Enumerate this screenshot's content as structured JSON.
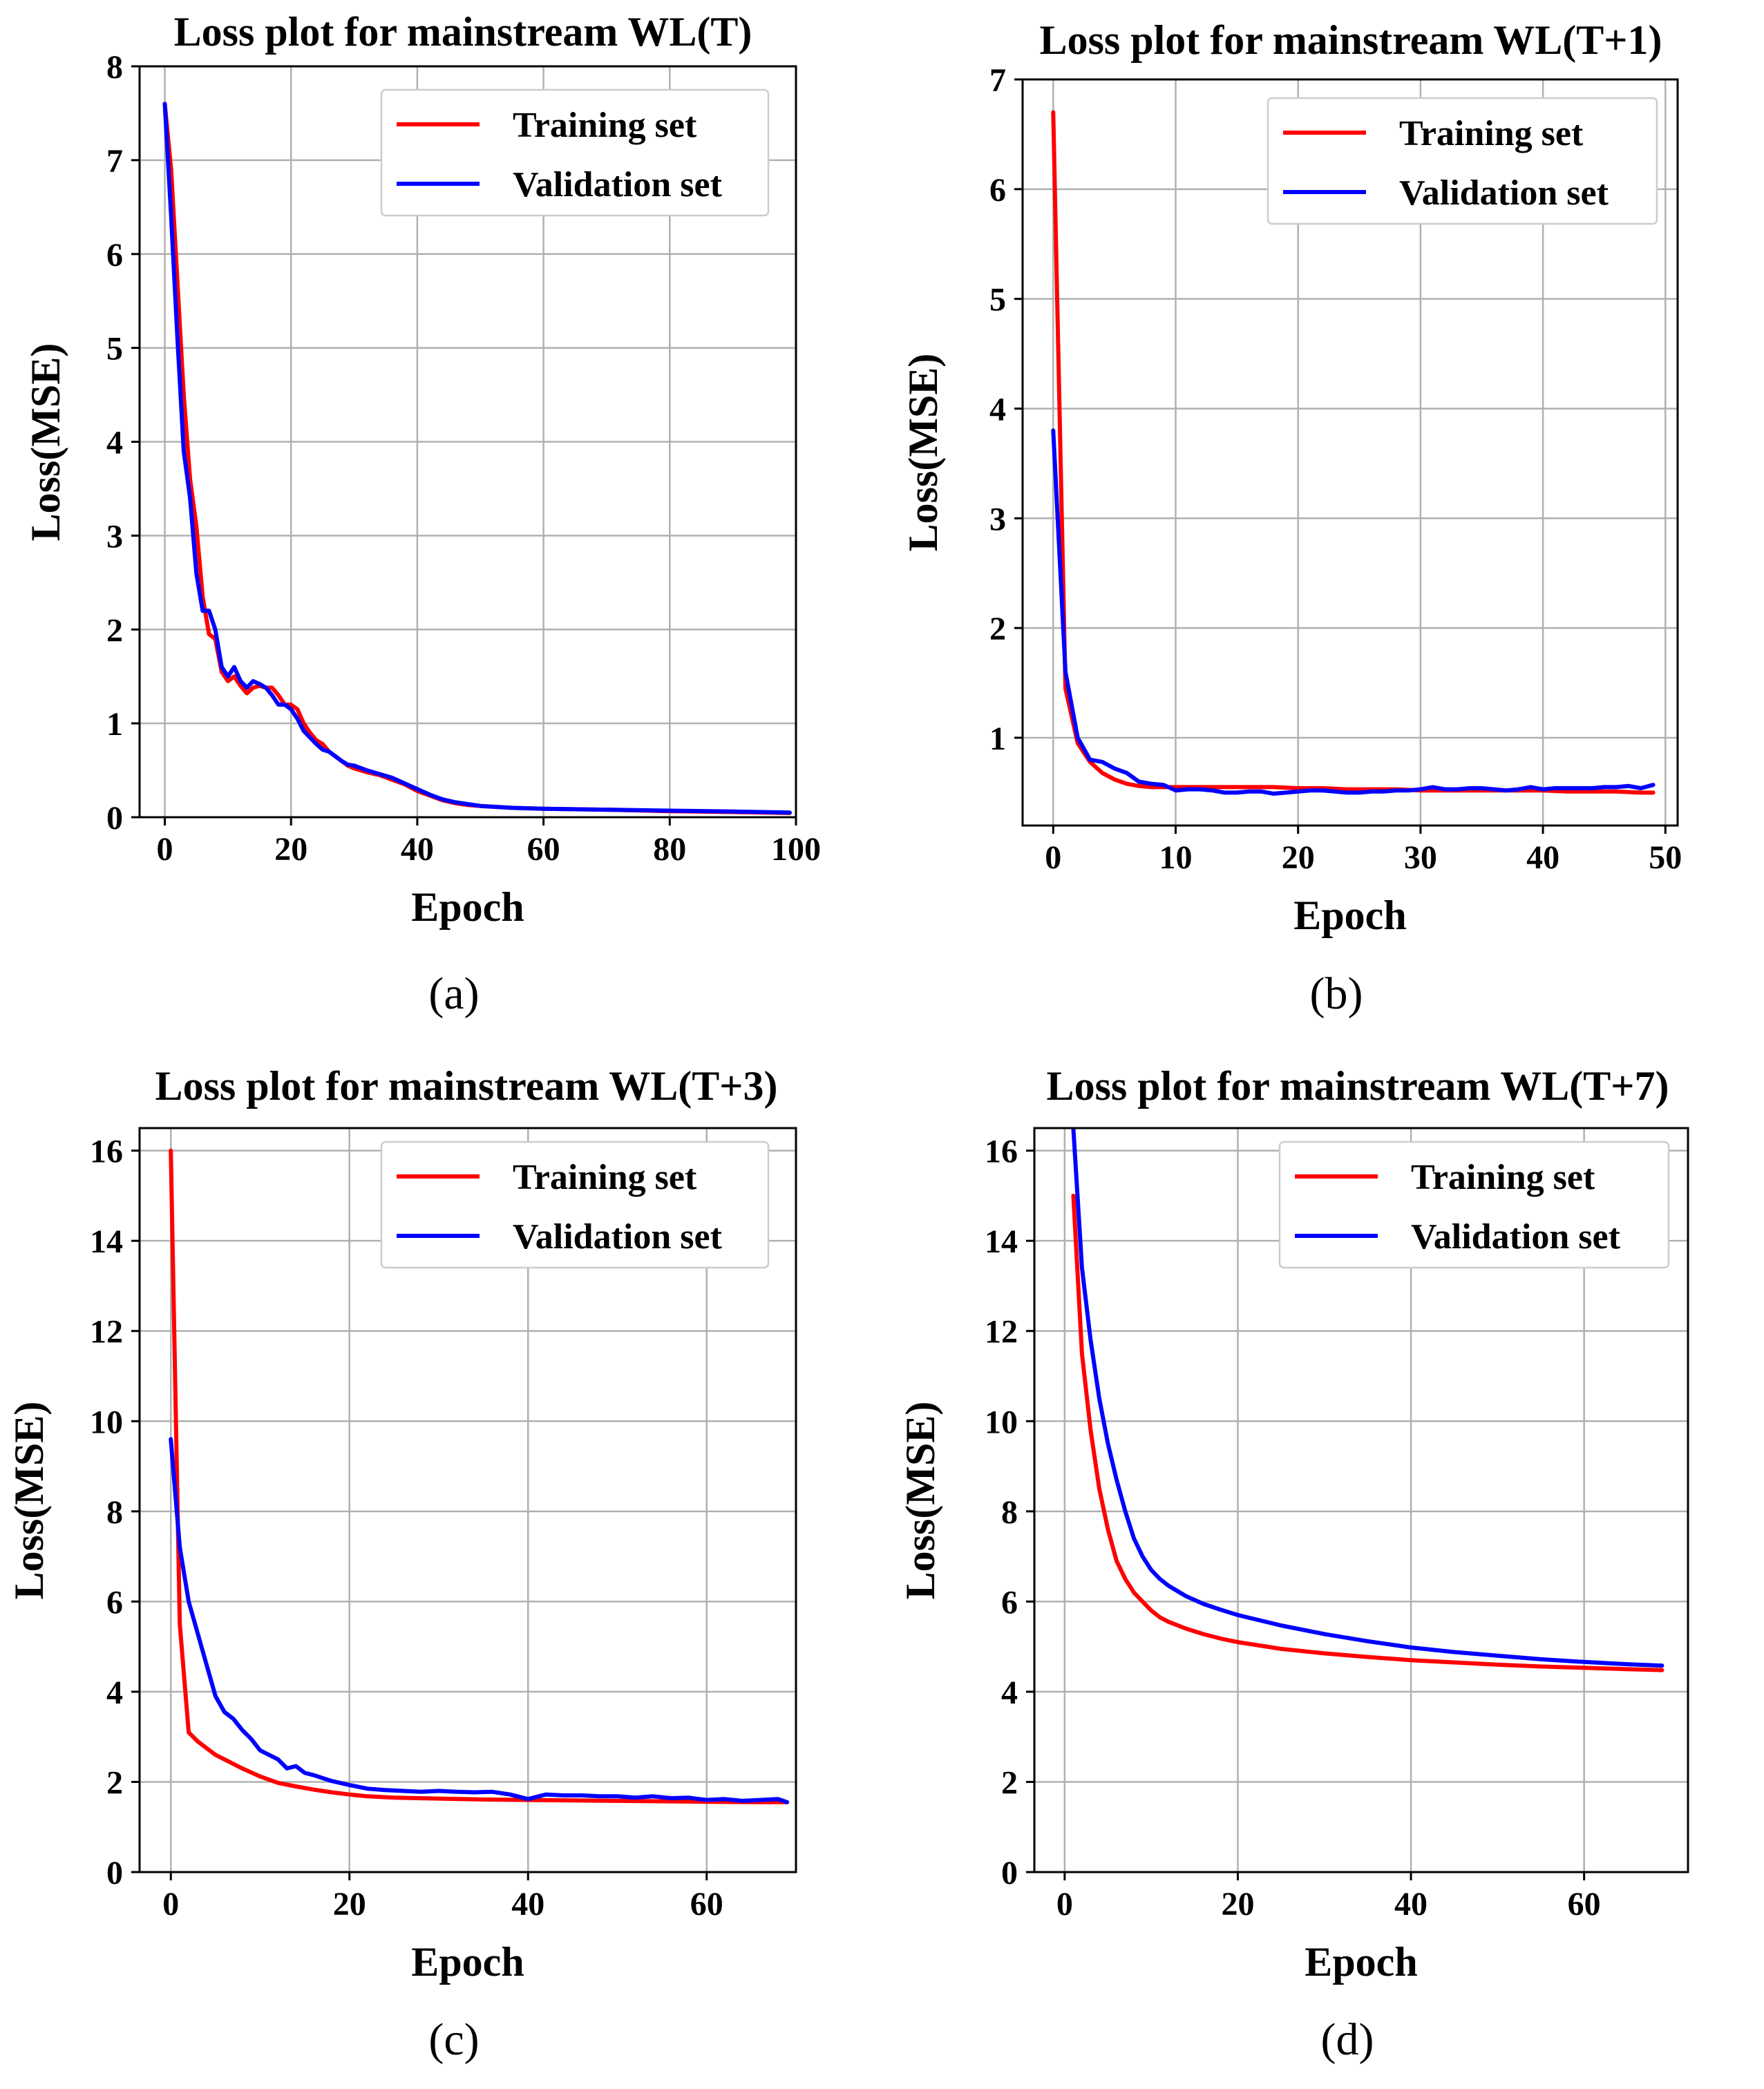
{
  "chart_data": [
    {
      "type": "line",
      "panel_label": "(a)",
      "title": "Loss plot for mainstream WL(T)",
      "xlabel": "Epoch",
      "ylabel": "Loss(MSE)",
      "xlim": [
        -4,
        100
      ],
      "ylim": [
        0,
        8
      ],
      "xticks": [
        0,
        20,
        40,
        60,
        80,
        100
      ],
      "yticks": [
        0,
        1,
        2,
        3,
        4,
        5,
        6,
        7,
        8
      ],
      "grid": true,
      "legend_position": "top-right",
      "series": [
        {
          "name": "Training set",
          "color": "#ff0000",
          "x": [
            0,
            1,
            2,
            3,
            4,
            5,
            6,
            7,
            8,
            9,
            10,
            11,
            12,
            13,
            14,
            15,
            16,
            17,
            18,
            19,
            20,
            21,
            22,
            23,
            24,
            25,
            26,
            27,
            28,
            29,
            30,
            32,
            34,
            36,
            38,
            40,
            42,
            44,
            46,
            48,
            50,
            55,
            60,
            70,
            80,
            90,
            99
          ],
          "y": [
            7.6,
            6.9,
            5.7,
            4.5,
            3.6,
            3.1,
            2.35,
            1.95,
            1.9,
            1.55,
            1.45,
            1.5,
            1.4,
            1.32,
            1.38,
            1.4,
            1.38,
            1.38,
            1.3,
            1.2,
            1.2,
            1.15,
            1.0,
            0.9,
            0.82,
            0.78,
            0.7,
            0.65,
            0.6,
            0.55,
            0.52,
            0.48,
            0.45,
            0.4,
            0.35,
            0.28,
            0.23,
            0.18,
            0.15,
            0.13,
            0.12,
            0.1,
            0.09,
            0.08,
            0.065,
            0.055,
            0.045
          ]
        },
        {
          "name": "Validation set",
          "color": "#0000ff",
          "x": [
            0,
            1,
            2,
            3,
            4,
            5,
            6,
            7,
            8,
            9,
            10,
            11,
            12,
            13,
            14,
            15,
            16,
            17,
            18,
            19,
            20,
            21,
            22,
            23,
            24,
            25,
            26,
            27,
            28,
            29,
            30,
            32,
            34,
            36,
            38,
            40,
            42,
            44,
            46,
            48,
            50,
            55,
            60,
            70,
            80,
            90,
            99
          ],
          "y": [
            7.6,
            6.4,
            5.1,
            3.9,
            3.4,
            2.6,
            2.2,
            2.2,
            2.0,
            1.6,
            1.5,
            1.6,
            1.45,
            1.38,
            1.45,
            1.42,
            1.38,
            1.3,
            1.2,
            1.2,
            1.15,
            1.05,
            0.92,
            0.85,
            0.78,
            0.72,
            0.7,
            0.65,
            0.6,
            0.56,
            0.55,
            0.5,
            0.46,
            0.42,
            0.36,
            0.3,
            0.24,
            0.19,
            0.16,
            0.14,
            0.12,
            0.1,
            0.09,
            0.08,
            0.07,
            0.06,
            0.05
          ]
        }
      ]
    },
    {
      "type": "line",
      "panel_label": "(b)",
      "title": "Loss plot for mainstream WL(T+1)",
      "xlabel": "Epoch",
      "ylabel": "Loss(MSE)",
      "xlim": [
        -2.5,
        51
      ],
      "ylim": [
        0.2,
        7
      ],
      "xticks": [
        0,
        10,
        20,
        30,
        40,
        50
      ],
      "yticks": [
        1,
        2,
        3,
        4,
        5,
        6,
        7
      ],
      "grid": true,
      "legend_position": "top-right",
      "series": [
        {
          "name": "Training set",
          "color": "#ff0000",
          "x": [
            0,
            1,
            2,
            3,
            4,
            5,
            6,
            7,
            8,
            9,
            10,
            12,
            14,
            16,
            18,
            20,
            22,
            24,
            26,
            28,
            30,
            32,
            34,
            36,
            38,
            40,
            42,
            44,
            46,
            48,
            49
          ],
          "y": [
            6.7,
            1.45,
            0.95,
            0.78,
            0.68,
            0.62,
            0.58,
            0.56,
            0.55,
            0.55,
            0.55,
            0.55,
            0.55,
            0.55,
            0.55,
            0.54,
            0.54,
            0.53,
            0.53,
            0.53,
            0.52,
            0.52,
            0.52,
            0.52,
            0.52,
            0.52,
            0.51,
            0.51,
            0.51,
            0.5,
            0.5
          ]
        },
        {
          "name": "Validation set",
          "color": "#0000ff",
          "x": [
            0,
            1,
            2,
            3,
            4,
            5,
            6,
            7,
            8,
            9,
            10,
            11,
            12,
            13,
            14,
            15,
            16,
            17,
            18,
            19,
            20,
            21,
            22,
            23,
            24,
            25,
            26,
            27,
            28,
            29,
            30,
            31,
            32,
            33,
            34,
            35,
            36,
            37,
            38,
            39,
            40,
            41,
            42,
            43,
            44,
            45,
            46,
            47,
            48,
            49
          ],
          "y": [
            3.8,
            1.6,
            1.0,
            0.8,
            0.78,
            0.72,
            0.68,
            0.6,
            0.58,
            0.57,
            0.52,
            0.53,
            0.53,
            0.52,
            0.5,
            0.5,
            0.51,
            0.51,
            0.49,
            0.5,
            0.51,
            0.52,
            0.52,
            0.51,
            0.5,
            0.5,
            0.51,
            0.51,
            0.52,
            0.52,
            0.53,
            0.55,
            0.53,
            0.53,
            0.54,
            0.54,
            0.53,
            0.52,
            0.53,
            0.55,
            0.53,
            0.54,
            0.54,
            0.54,
            0.54,
            0.55,
            0.55,
            0.56,
            0.54,
            0.57
          ]
        }
      ]
    },
    {
      "type": "line",
      "panel_label": "(c)",
      "title": "Loss plot for mainstream WL(T+3)",
      "xlabel": "Epoch",
      "ylabel": "Loss(MSE)",
      "xlim": [
        -3.5,
        70
      ],
      "ylim": [
        0,
        16.5
      ],
      "xticks": [
        0,
        20,
        40,
        60
      ],
      "yticks": [
        0,
        2,
        4,
        6,
        8,
        10,
        12,
        14,
        16
      ],
      "grid": true,
      "legend_position": "top-right",
      "series": [
        {
          "name": "Training set",
          "color": "#ff0000",
          "x": [
            0,
            1,
            2,
            3,
            4,
            5,
            6,
            8,
            10,
            12,
            14,
            16,
            18,
            20,
            22,
            25,
            30,
            35,
            40,
            45,
            50,
            55,
            60,
            65,
            69
          ],
          "y": [
            16.0,
            5.5,
            3.1,
            2.9,
            2.75,
            2.6,
            2.5,
            2.3,
            2.12,
            1.98,
            1.9,
            1.83,
            1.77,
            1.72,
            1.68,
            1.65,
            1.63,
            1.61,
            1.6,
            1.59,
            1.58,
            1.57,
            1.56,
            1.55,
            1.55
          ]
        },
        {
          "name": "Validation set",
          "color": "#0000ff",
          "x": [
            0,
            1,
            2,
            3,
            4,
            5,
            6,
            7,
            8,
            9,
            10,
            11,
            12,
            13,
            14,
            15,
            16,
            18,
            20,
            22,
            24,
            26,
            28,
            30,
            32,
            34,
            36,
            38,
            40,
            42,
            44,
            46,
            48,
            50,
            52,
            54,
            56,
            58,
            60,
            62,
            64,
            66,
            68,
            69
          ],
          "y": [
            9.6,
            7.2,
            6.0,
            5.3,
            4.6,
            3.9,
            3.55,
            3.4,
            3.15,
            2.95,
            2.7,
            2.6,
            2.5,
            2.3,
            2.35,
            2.2,
            2.15,
            2.02,
            1.93,
            1.85,
            1.82,
            1.8,
            1.78,
            1.8,
            1.78,
            1.77,
            1.78,
            1.72,
            1.62,
            1.72,
            1.7,
            1.7,
            1.68,
            1.68,
            1.65,
            1.68,
            1.64,
            1.65,
            1.6,
            1.62,
            1.58,
            1.6,
            1.62,
            1.55
          ]
        }
      ]
    },
    {
      "type": "line",
      "panel_label": "(d)",
      "title": "Loss plot for mainstream WL(T+7)",
      "xlabel": "Epoch",
      "ylabel": "Loss(MSE)",
      "xlim": [
        -3.5,
        72
      ],
      "ylim": [
        0,
        16.5
      ],
      "xticks": [
        0,
        20,
        40,
        60
      ],
      "yticks": [
        0,
        2,
        4,
        6,
        8,
        10,
        12,
        14,
        16
      ],
      "grid": true,
      "legend_position": "top-right",
      "series": [
        {
          "name": "Training set",
          "color": "#ff0000",
          "x": [
            1,
            2,
            3,
            4,
            5,
            6,
            7,
            8,
            9,
            10,
            11,
            12,
            14,
            16,
            18,
            20,
            25,
            30,
            35,
            40,
            45,
            50,
            55,
            60,
            65,
            69
          ],
          "y": [
            15.0,
            11.5,
            9.8,
            8.5,
            7.6,
            6.9,
            6.5,
            6.2,
            6.0,
            5.8,
            5.65,
            5.55,
            5.4,
            5.28,
            5.18,
            5.1,
            4.95,
            4.85,
            4.77,
            4.7,
            4.65,
            4.6,
            4.56,
            4.53,
            4.5,
            4.48
          ]
        },
        {
          "name": "Validation set",
          "color": "#0000ff",
          "x": [
            1,
            2,
            3,
            4,
            5,
            6,
            7,
            8,
            9,
            10,
            11,
            12,
            14,
            16,
            18,
            20,
            25,
            30,
            35,
            40,
            45,
            50,
            55,
            60,
            65,
            69
          ],
          "y": [
            16.5,
            13.4,
            11.8,
            10.5,
            9.5,
            8.7,
            8.0,
            7.4,
            7.0,
            6.7,
            6.5,
            6.35,
            6.12,
            5.95,
            5.82,
            5.7,
            5.47,
            5.28,
            5.12,
            4.98,
            4.88,
            4.8,
            4.72,
            4.66,
            4.61,
            4.58
          ]
        }
      ]
    }
  ]
}
